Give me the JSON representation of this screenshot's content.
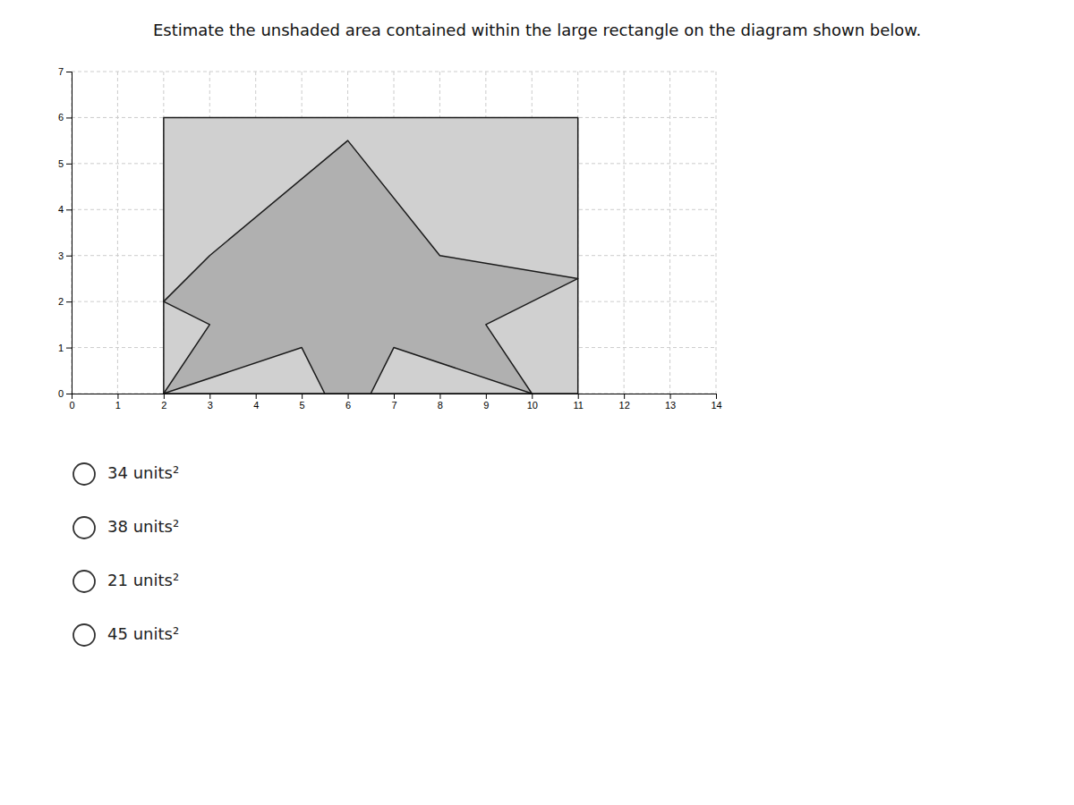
{
  "chart_data": {
    "type": "polygon",
    "title": "Estimate the unshaded area contained within the large rectangle on the diagram shown below.",
    "series": [
      {
        "color": "#d0d0d0",
        "x": [
          2,
          11,
          11,
          2
        ],
        "y": [
          0,
          0,
          6,
          6
        ]
      },
      {
        "color": "#b0b0b0",
        "x": [
          2,
          3,
          6,
          8,
          11,
          9,
          10,
          7,
          6.5,
          5.5,
          5,
          2,
          3
        ],
        "y": [
          2,
          3,
          5.5,
          3,
          2.5,
          1.5,
          0,
          1,
          0,
          0,
          1,
          0,
          1.5
        ]
      }
    ],
    "annotations": [
      "34 units²",
      "38 units²",
      "21 units²",
      "45 units²"
    ],
    "xlim": [
      0,
      14
    ],
    "ylim": [
      0,
      7
    ],
    "xticks": [
      0,
      1,
      2,
      3,
      4,
      5,
      6,
      7,
      8,
      9,
      10,
      11,
      12,
      13,
      14
    ],
    "yticks": [
      0,
      1,
      2,
      3,
      4,
      5,
      6,
      7
    ],
    "grid": true
  }
}
